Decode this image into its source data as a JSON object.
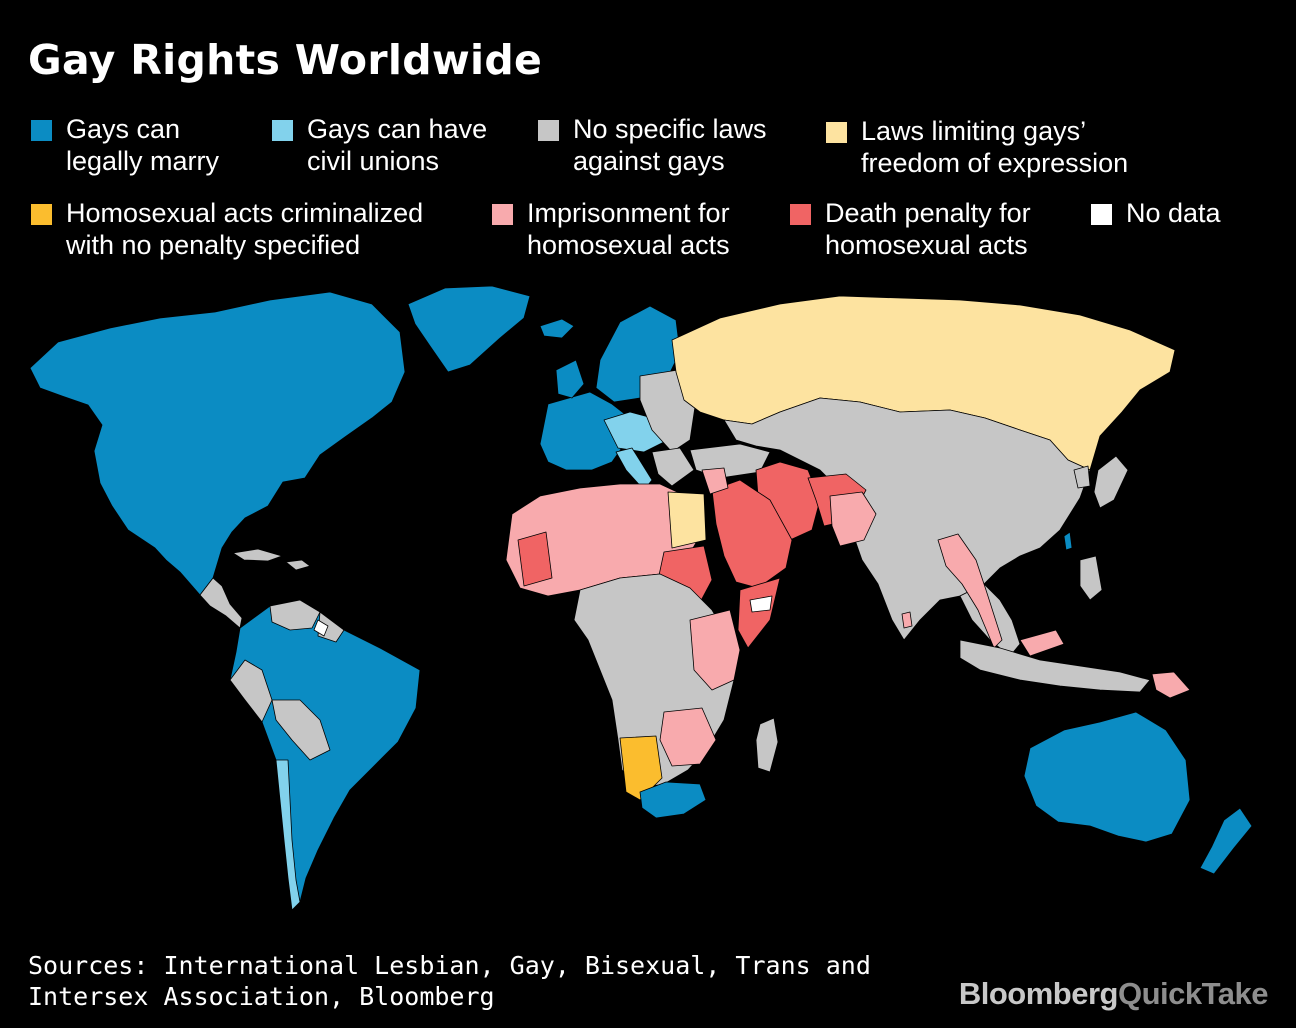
{
  "title": "Gay Rights Worldwide",
  "legend": [
    {
      "id": "marry",
      "label": "Gays can\nlegally marry",
      "color": "#0b8cc3"
    },
    {
      "id": "civil",
      "label": "Gays can have\ncivil unions",
      "color": "#82d2ec"
    },
    {
      "id": "nolaws",
      "label": "No specific laws\nagainst gays",
      "color": "#c6c6c6"
    },
    {
      "id": "expression",
      "label": "Laws limiting gays’\nfreedom of expression",
      "color": "#fde3a0"
    },
    {
      "id": "criminal",
      "label": "Homosexual acts criminalized\nwith no penalty specified",
      "color": "#fbbd2e"
    },
    {
      "id": "prison",
      "label": "Imprisonment for\nhomosexual acts",
      "color": "#f8aaad"
    },
    {
      "id": "death",
      "label": "Death penalty for\nhomosexual acts",
      "color": "#f06464"
    },
    {
      "id": "nodata",
      "label": "No data",
      "color": "#ffffff"
    }
  ],
  "sources": "Sources: International Lesbian, Gay, Bisexual, Trans and Intersex Association, Bloomberg",
  "logo": {
    "primary": "Bloomberg",
    "secondary": "QuickTake",
    "primary_color": "#c8c8c8",
    "secondary_color": "#8e8e8e"
  },
  "map_background": "#000000"
}
